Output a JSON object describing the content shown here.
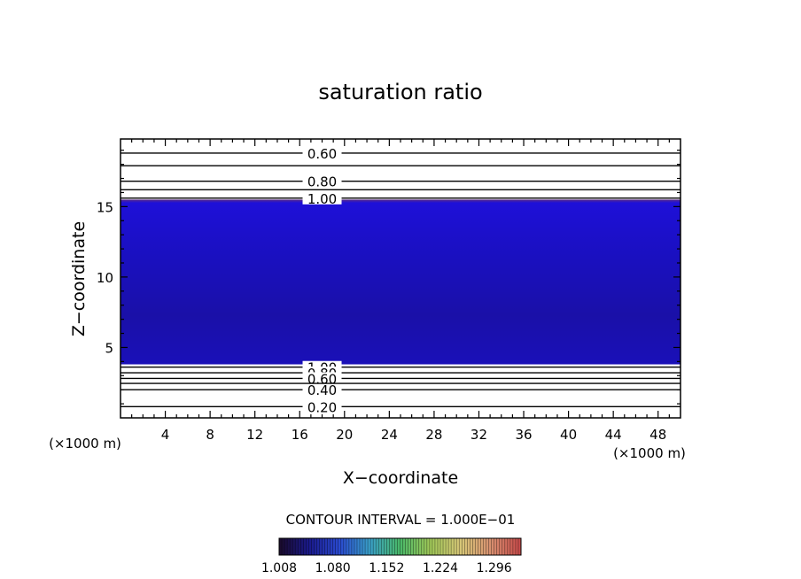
{
  "chart_data": {
    "type": "heatmap",
    "title": "saturation ratio",
    "xlabel": "X−coordinate",
    "ylabel": "Z−coordinate",
    "x_unit_left": "(×1000 m)",
    "x_unit_right": "(×1000 m)",
    "xlim": [
      0,
      50
    ],
    "ylim": [
      0,
      19.8
    ],
    "x_ticks": [
      4,
      8,
      12,
      16,
      20,
      24,
      28,
      32,
      36,
      40,
      44,
      48
    ],
    "y_ticks": [
      5,
      10,
      15
    ],
    "filled_region": {
      "z_bottom": 3.8,
      "z_top": 15.5,
      "fill_color": "#1a10b0"
    },
    "upper_contours": [
      {
        "z": 18.8,
        "label": "0.60"
      },
      {
        "z": 17.9,
        "label": ""
      },
      {
        "z": 16.8,
        "label": "0.80"
      },
      {
        "z": 16.2,
        "label": ""
      },
      {
        "z": 15.6,
        "label": "1.00"
      }
    ],
    "lower_contours": [
      {
        "z": 3.6,
        "label": "1.00"
      },
      {
        "z": 3.2,
        "label": "0.80"
      },
      {
        "z": 2.8,
        "label": "0.60"
      },
      {
        "z": 2.0,
        "label": "0.40"
      },
      {
        "z": 0.8,
        "label": "0.20"
      },
      {
        "z": 2.45,
        "label": ""
      }
    ],
    "contour_interval_text": "CONTOUR INTERVAL = 1.000E−01",
    "colorbar": {
      "min": 1.008,
      "max": 1.332,
      "tick_labels": [
        "1.008",
        "1.080",
        "1.152",
        "1.224",
        "1.296"
      ],
      "colors": [
        "#1a0a2a",
        "#1a1a8c",
        "#2a4ad0",
        "#3aa0c8",
        "#4ab868",
        "#a0c858",
        "#d8c878",
        "#d89070",
        "#c84a4a"
      ]
    }
  }
}
